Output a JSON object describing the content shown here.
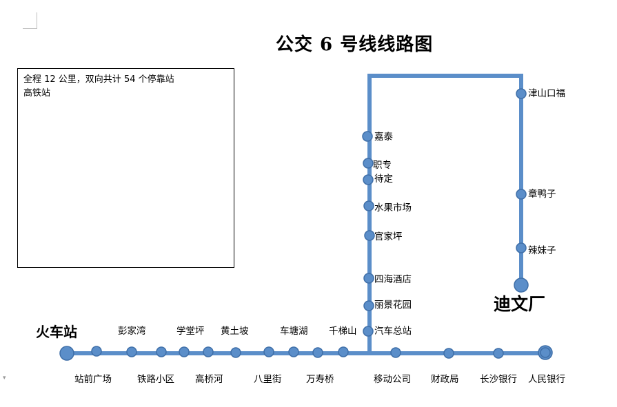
{
  "title": "公交 6 号线线路图",
  "info": {
    "line1": "全程 12 公里，双向共计 54 个停靠站",
    "line2": "高铁站"
  },
  "colors": {
    "route": "#5b8ec9",
    "stop_fill": "#5b8ec9",
    "stop_stroke": "#3f6fa8"
  },
  "terminals": {
    "start": "火车站",
    "end": "迪文厂"
  },
  "stops": [
    "站前广场",
    "彭家湾",
    "铁路小区",
    "学堂坪",
    "高桥河",
    "黄土坡",
    "八里街",
    "车塘湖",
    "万寿桥",
    "千梯山",
    "汽车总站",
    "丽景花园",
    "四海酒店",
    "官家坪",
    "水果市场",
    "待定",
    "职专",
    "嘉泰",
    "移动公司",
    "财政局",
    "长沙银行",
    "人民银行",
    "津山口福",
    "章鸭子",
    "辣妹子"
  ]
}
